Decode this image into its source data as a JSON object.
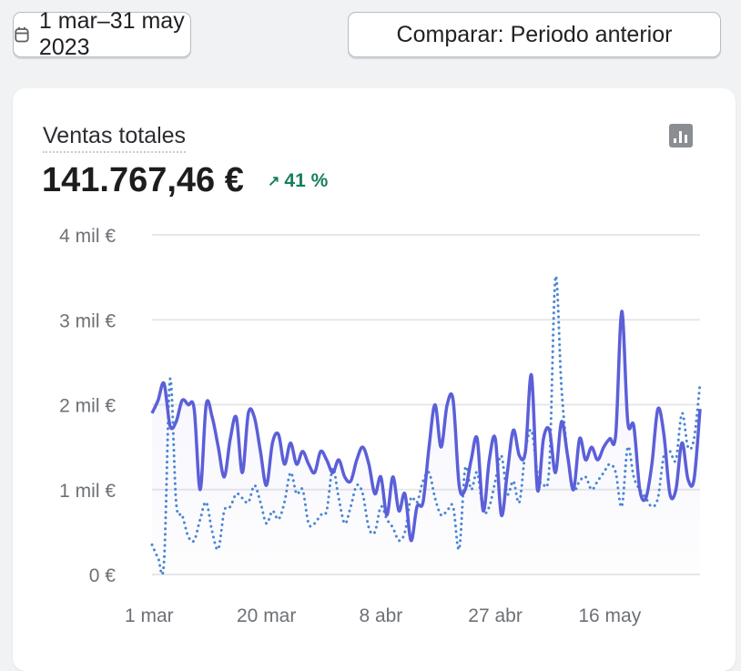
{
  "toolbar": {
    "date_range": "1 mar–31 may 2023",
    "compare": "Comparar: Periodo anterior"
  },
  "card": {
    "title": "Ventas totales",
    "total": "141.767,46 €",
    "delta": "41 %",
    "delta_direction": "up",
    "chart_type_icon": "bar-chart-icon"
  },
  "colors": {
    "current": "#5b5fd8",
    "previous": "#4a86d4",
    "delta": "#16805a"
  },
  "chart_data": {
    "type": "line",
    "title": "Ventas totales",
    "xlabel": "",
    "ylabel": "",
    "ylim": [
      0,
      4000
    ],
    "y_ticks": [
      {
        "v": 0,
        "label": "0 €"
      },
      {
        "v": 1000,
        "label": "1 mil €"
      },
      {
        "v": 2000,
        "label": "2 mil €"
      },
      {
        "v": 3000,
        "label": "3 mil €"
      },
      {
        "v": 4000,
        "label": "4 mil €"
      }
    ],
    "x_ticks": [
      {
        "i": 0,
        "label": "1 mar"
      },
      {
        "i": 19,
        "label": "20 mar"
      },
      {
        "i": 38,
        "label": "8 abr"
      },
      {
        "i": 57,
        "label": "27 abr"
      },
      {
        "i": 76,
        "label": "16 may"
      }
    ],
    "grid": true,
    "series": [
      {
        "name": "current",
        "style": "solid",
        "values": [
          1900,
          2050,
          2250,
          1750,
          1800,
          2050,
          2000,
          1950,
          1000,
          2000,
          1850,
          1500,
          1150,
          1600,
          1850,
          1200,
          1900,
          1850,
          1450,
          1050,
          1550,
          1650,
          1300,
          1550,
          1300,
          1450,
          1300,
          1200,
          1450,
          1350,
          1200,
          1350,
          1150,
          1100,
          1350,
          1500,
          1300,
          950,
          1150,
          700,
          1150,
          750,
          950,
          400,
          800,
          850,
          1500,
          2000,
          1500,
          2000,
          2050,
          1050,
          1000,
          1350,
          1600,
          750,
          1350,
          1600,
          700,
          1200,
          1700,
          1400,
          1450,
          2350,
          1000,
          1600,
          1700,
          1200,
          1800,
          1400,
          1000,
          1600,
          1350,
          1500,
          1350,
          1500,
          1600,
          1650,
          3100,
          1800,
          1750,
          1000,
          900,
          1300,
          1950,
          1650,
          950,
          1000,
          1550,
          1120,
          1120,
          1950
        ]
      },
      {
        "name": "previous",
        "style": "dotted",
        "values": [
          350,
          200,
          150,
          2300,
          850,
          700,
          450,
          400,
          650,
          850,
          500,
          300,
          750,
          800,
          950,
          900,
          850,
          1050,
          850,
          600,
          750,
          650,
          850,
          1200,
          950,
          1000,
          600,
          600,
          700,
          750,
          1250,
          900,
          600,
          800,
          1050,
          950,
          550,
          500,
          800,
          650,
          550,
          400,
          500,
          900,
          850,
          1100,
          1200,
          900,
          700,
          750,
          800,
          300,
          1250,
          1000,
          1200,
          750,
          800,
          1100,
          1400,
          950,
          1100,
          850,
          1450,
          1700,
          1200,
          1050,
          1300,
          3500,
          2200,
          1400,
          1000,
          1100,
          1150,
          1000,
          1100,
          1200,
          1300,
          1200,
          800,
          1500,
          1150,
          1000,
          900,
          800,
          900,
          1400,
          1450,
          1350,
          1900,
          1500,
          1600,
          2250
        ]
      }
    ]
  }
}
